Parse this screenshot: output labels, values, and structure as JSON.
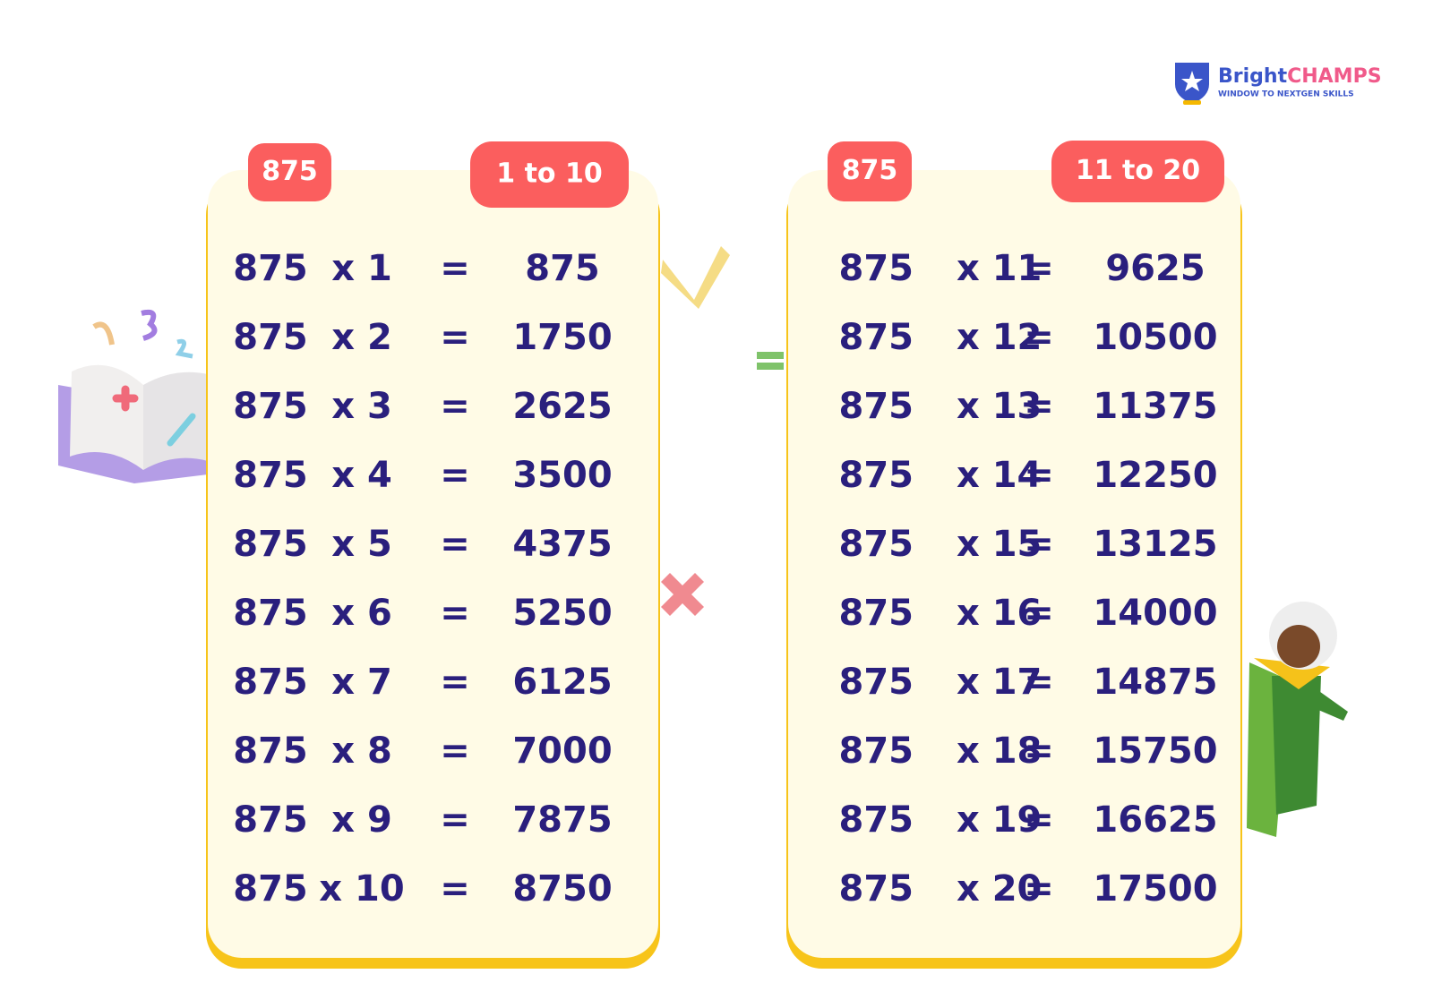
{
  "logo": {
    "brand_left": "Bright",
    "brand_right": "CHAMPS",
    "tagline": "WINDOW TO NEXTGEN SKILLS"
  },
  "panels": [
    {
      "badge": "875",
      "range": "1 to 10",
      "rows": [
        {
          "base": "875",
          "times": "x 1",
          "equals": "=",
          "result": "875"
        },
        {
          "base": "875",
          "times": "x 2",
          "equals": "=",
          "result": "1750"
        },
        {
          "base": "875",
          "times": "x 3",
          "equals": "=",
          "result": "2625"
        },
        {
          "base": "875",
          "times": "x 4",
          "equals": "=",
          "result": "3500"
        },
        {
          "base": "875",
          "times": "x 5",
          "equals": "=",
          "result": "4375"
        },
        {
          "base": "875",
          "times": "x 6",
          "equals": "=",
          "result": "5250"
        },
        {
          "base": "875",
          "times": "x 7",
          "equals": "=",
          "result": "6125"
        },
        {
          "base": "875",
          "times": "x 8",
          "equals": "=",
          "result": "7000"
        },
        {
          "base": "875",
          "times": "x 9",
          "equals": "=",
          "result": "7875"
        },
        {
          "base": "875",
          "times": "x 10",
          "equals": "=",
          "result": "8750"
        }
      ]
    },
    {
      "badge": "875",
      "range": "11 to 20",
      "rows": [
        {
          "base": "875",
          "times": "x 11",
          "equals": "=",
          "result": "9625"
        },
        {
          "base": "875",
          "times": "x 12",
          "equals": "=",
          "result": "10500"
        },
        {
          "base": "875",
          "times": "x 13",
          "equals": "=",
          "result": "11375"
        },
        {
          "base": "875",
          "times": "x 14",
          "equals": "=",
          "result": "12250"
        },
        {
          "base": "875",
          "times": "x 15",
          "equals": "=",
          "result": "13125"
        },
        {
          "base": "875",
          "times": "x 16",
          "equals": "=",
          "result": "14000"
        },
        {
          "base": "875",
          "times": "x 17",
          "equals": "=",
          "result": "14875"
        },
        {
          "base": "875",
          "times": "x 18",
          "equals": "=",
          "result": "15750"
        },
        {
          "base": "875",
          "times": "x 19",
          "equals": "=",
          "result": "16625"
        },
        {
          "base": "875",
          "times": "x 20",
          "equals": "=",
          "result": "17500"
        }
      ]
    }
  ]
}
